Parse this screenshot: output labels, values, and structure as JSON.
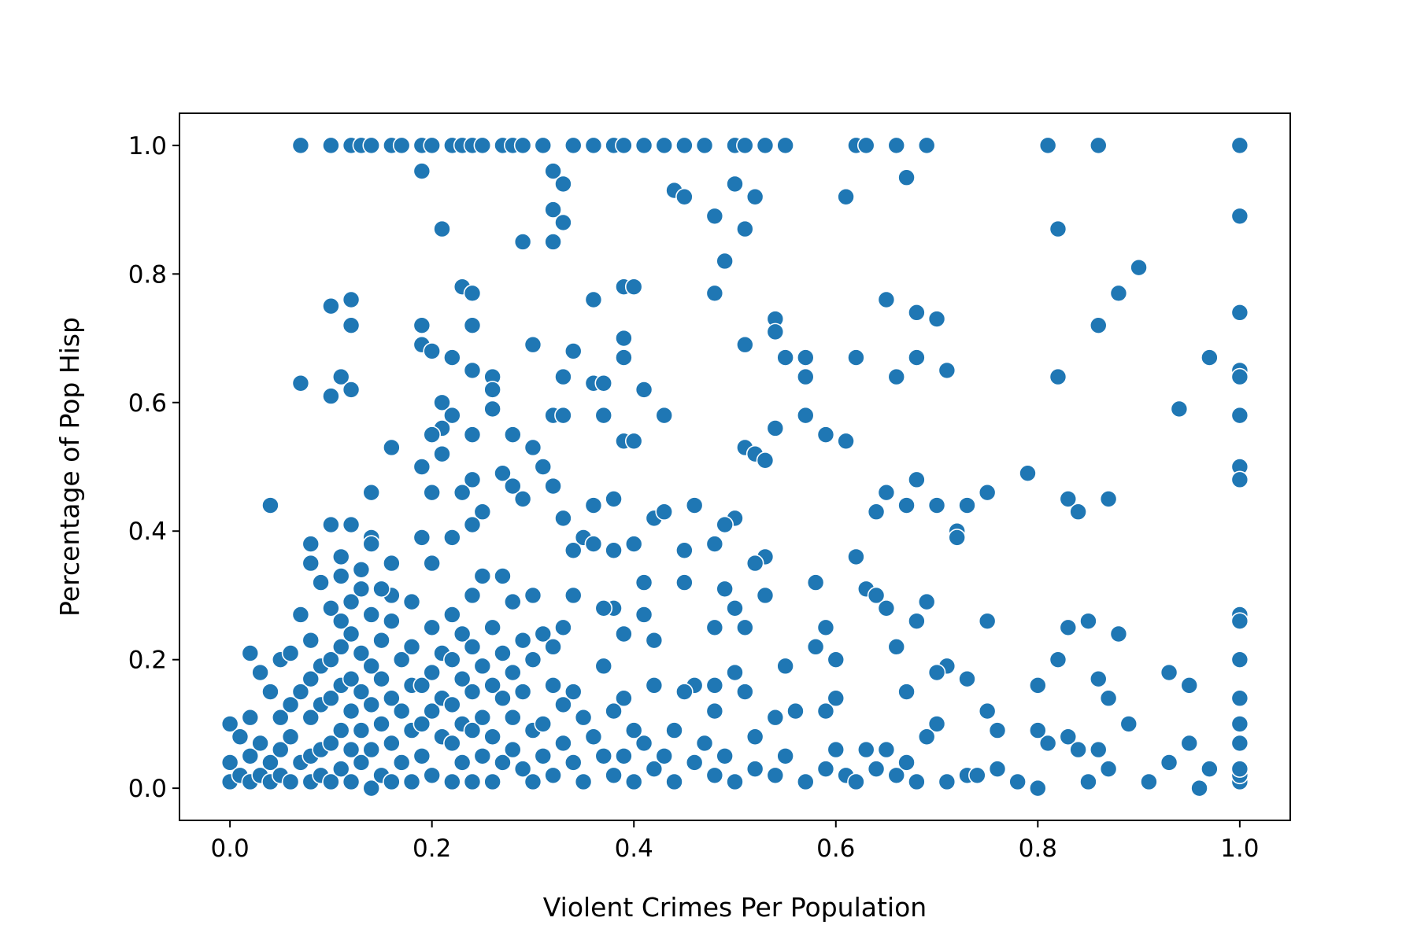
{
  "chart_data": {
    "type": "scatter",
    "xlabel": "Violent Crimes Per Population",
    "ylabel": "Percentage of Pop Hisp",
    "color": "#1f77b4",
    "xlim": [
      -0.05,
      1.05
    ],
    "ylim": [
      -0.05,
      1.05
    ],
    "xticks": [
      {
        "value": 0,
        "label": "0.0"
      },
      0.2,
      0.4,
      0.6,
      0.8,
      {
        "value": 1,
        "label": "1.0"
      }
    ],
    "yticks": [
      {
        "value": 0,
        "label": "0.0"
      },
      0.2,
      0.4,
      0.6,
      0.8,
      {
        "value": 1,
        "label": "1.0"
      }
    ],
    "x": [
      0.07,
      0.1,
      0.12,
      0.13,
      0.14,
      0.16,
      0.17,
      0.19,
      0.2,
      0.22,
      0.23,
      0.24,
      0.25,
      0.27,
      0.28,
      0.29,
      0.31,
      0.34,
      0.36,
      0.38,
      0.39,
      0.41,
      0.43,
      0.45,
      0.47,
      0.5,
      0.51,
      0.53,
      0.55,
      0.62,
      0.63,
      0.66,
      0.69,
      0.81,
      0.86,
      1,
      0.19,
      0.21,
      0.29,
      0.32,
      0.32,
      0.33,
      0.33,
      0.32,
      0.44,
      0.45,
      0.48,
      0.5,
      0.52,
      0.51,
      0.61,
      0.67,
      0.49,
      0.82,
      1,
      0.9,
      0.88,
      0.48,
      0.23,
      0.24,
      0.39,
      0.4,
      0.1,
      0.12,
      0.12,
      0.19,
      0.24,
      0.36,
      0.65,
      0.68,
      0.7,
      0.86,
      1,
      0.54,
      0.54,
      0.39,
      0.19,
      0.2,
      0.3,
      0.34,
      0.51,
      0.22,
      0.39,
      0.55,
      0.57,
      0.62,
      0.68,
      0.97,
      0.24,
      0.71,
      1,
      1,
      0.11,
      0.26,
      0.33,
      0.57,
      0.66,
      0.82,
      0.07,
      0.36,
      0.37,
      0.1,
      0.12,
      0.26,
      0.41,
      0.21,
      0.26,
      0.94,
      1,
      0.22,
      0.32,
      0.33,
      0.37,
      0.43,
      0.57,
      0.21,
      0.54,
      0.2,
      0.24,
      0.28,
      0.39,
      0.4,
      0.59,
      0.61,
      0.16,
      0.3,
      0.51,
      0.21,
      0.52,
      0.53,
      0.31,
      0.19,
      1,
      0.79,
      0.27,
      0.24,
      0.28,
      0.68,
      1,
      0.32,
      0.14,
      0.2,
      0.23,
      0.29,
      0.38,
      0.65,
      0.75,
      0.83,
      0.87,
      0.04,
      0.36,
      0.46,
      0.67,
      0.7,
      0.73,
      0.84,
      0.25,
      0.42,
      0.43,
      0.5,
      0.64,
      0.33,
      0.1,
      0.12,
      0.24,
      0.49,
      0.72,
      0.72,
      0.14,
      0.19,
      0.22,
      0.35,
      0.08,
      0.14,
      0.36,
      0.4,
      0.48,
      0.11,
      0.2,
      0.16,
      0.08,
      0.34,
      0.38,
      0.45,
      0.62,
      0.53,
      0.52,
      0.09,
      0.13,
      0.27,
      0.41,
      0.45,
      0.58,
      0.63,
      0.49,
      0.64,
      0.53,
      0.16,
      0.34,
      0.3,
      0.69,
      0.38,
      0.5,
      0.65,
      1,
      1,
      0.07,
      0.41,
      0.68,
      0.75,
      0.85,
      0.48,
      0.51,
      0.59,
      0.83,
      0.39,
      0.88,
      0.42,
      0.58,
      0.66,
      0.02,
      0.55,
      0.6,
      1,
      0.82,
      0.71,
      0.37,
      0.7,
      0.5,
      0.73,
      0.93,
      0.86,
      0.95,
      0.8,
      0.48,
      0.46,
      0.42,
      0.67,
      0.51,
      0.45,
      1,
      0.87,
      0.6,
      0.39,
      0.75,
      0.48,
      0.89,
      0.7,
      1,
      0.59,
      0.56,
      0.54,
      0.95,
      0.93,
      0.97,
      0.96,
      0.8,
      0.91,
      1,
      1,
      1,
      0.81,
      0.83,
      0.84,
      0.86,
      0.76,
      0.8,
      0.73,
      0.69,
      0.65,
      0.63,
      0.6,
      0.52,
      0.47,
      0.44,
      0.41,
      0,
      0,
      0,
      0.01,
      0.01,
      0.02,
      0.02,
      0.02,
      0.03,
      0.03,
      0.03,
      0.04,
      0.04,
      0.04,
      0.05,
      0.05,
      0.05,
      0.05,
      0.06,
      0.06,
      0.06,
      0.06,
      0.07,
      0.07,
      0.08,
      0.08,
      0.08,
      0.08,
      0.08,
      0.09,
      0.09,
      0.09,
      0.09,
      0.1,
      0.1,
      0.1,
      0.1,
      0.1,
      0.11,
      0.11,
      0.11,
      0.11,
      0.11,
      0.11,
      0.12,
      0.12,
      0.12,
      0.12,
      0.12,
      0.12,
      0.13,
      0.13,
      0.13,
      0.13,
      0.13,
      0.14,
      0.14,
      0.14,
      0.14,
      0.14,
      0.15,
      0.15,
      0.15,
      0.15,
      0.15,
      0.16,
      0.16,
      0.16,
      0.16,
      0.17,
      0.17,
      0.17,
      0.18,
      0.18,
      0.18,
      0.18,
      0.18,
      0.19,
      0.19,
      0.19,
      0.2,
      0.2,
      0.2,
      0.2,
      0.21,
      0.21,
      0.21,
      0.22,
      0.22,
      0.22,
      0.22,
      0.22,
      0.23,
      0.23,
      0.23,
      0.23,
      0.24,
      0.24,
      0.24,
      0.24,
      0.24,
      0.25,
      0.25,
      0.25,
      0.25,
      0.26,
      0.26,
      0.26,
      0.26,
      0.27,
      0.27,
      0.27,
      0.28,
      0.28,
      0.28,
      0.28,
      0.29,
      0.29,
      0.29,
      0.3,
      0.3,
      0.3,
      0.31,
      0.31,
      0.31,
      0.32,
      0.32,
      0.32,
      0.33,
      0.33,
      0.33,
      0.34,
      0.34,
      0.35,
      0.35,
      0.36,
      0.37,
      0.37,
      0.38,
      0.38,
      0.39,
      0.4,
      0.4,
      0.42,
      0.43,
      0.44,
      0.46,
      0.48,
      0.49,
      0.5,
      0.52,
      0.54,
      0.55,
      0.57,
      0.59,
      0.61,
      0.62,
      0.64,
      0.66,
      0.67,
      0.68,
      0.71,
      0.74,
      0.76,
      0.78,
      0.85,
      0.87,
      1
    ],
    "values": [
      1,
      1,
      1,
      1,
      1,
      1,
      1,
      1,
      1,
      1,
      1,
      1,
      1,
      1,
      1,
      1,
      1,
      1,
      1,
      1,
      1,
      1,
      1,
      1,
      1,
      1,
      1,
      1,
      1,
      1,
      1,
      1,
      1,
      1,
      1,
      1,
      0.96,
      0.87,
      0.85,
      0.96,
      0.9,
      0.88,
      0.94,
      0.85,
      0.93,
      0.92,
      0.89,
      0.94,
      0.92,
      0.87,
      0.92,
      0.95,
      0.82,
      0.87,
      0.89,
      0.81,
      0.77,
      0.77,
      0.78,
      0.77,
      0.78,
      0.78,
      0.75,
      0.76,
      0.72,
      0.72,
      0.72,
      0.76,
      0.76,
      0.74,
      0.73,
      0.72,
      0.74,
      0.73,
      0.71,
      0.7,
      0.69,
      0.68,
      0.69,
      0.68,
      0.69,
      0.67,
      0.67,
      0.67,
      0.67,
      0.67,
      0.67,
      0.67,
      0.65,
      0.65,
      0.65,
      0.64,
      0.64,
      0.64,
      0.64,
      0.64,
      0.64,
      0.64,
      0.63,
      0.63,
      0.63,
      0.61,
      0.62,
      0.62,
      0.62,
      0.6,
      0.59,
      0.59,
      0.58,
      0.58,
      0.58,
      0.58,
      0.58,
      0.58,
      0.58,
      0.56,
      0.56,
      0.55,
      0.55,
      0.55,
      0.54,
      0.54,
      0.55,
      0.54,
      0.53,
      0.53,
      0.53,
      0.52,
      0.52,
      0.51,
      0.5,
      0.5,
      0.5,
      0.49,
      0.49,
      0.48,
      0.47,
      0.48,
      0.48,
      0.47,
      0.46,
      0.46,
      0.46,
      0.45,
      0.45,
      0.46,
      0.46,
      0.45,
      0.45,
      0.44,
      0.44,
      0.44,
      0.44,
      0.44,
      0.44,
      0.43,
      0.43,
      0.42,
      0.43,
      0.42,
      0.43,
      0.42,
      0.41,
      0.41,
      0.41,
      0.41,
      0.4,
      0.39,
      0.39,
      0.39,
      0.39,
      0.39,
      0.38,
      0.38,
      0.38,
      0.38,
      0.38,
      0.36,
      0.35,
      0.35,
      0.35,
      0.37,
      0.37,
      0.37,
      0.36,
      0.36,
      0.35,
      0.32,
      0.34,
      0.33,
      0.32,
      0.32,
      0.32,
      0.31,
      0.31,
      0.3,
      0.3,
      0.3,
      0.3,
      0.3,
      0.29,
      0.28,
      0.28,
      0.28,
      0.27,
      0.26,
      0.27,
      0.27,
      0.26,
      0.26,
      0.26,
      0.25,
      0.25,
      0.25,
      0.25,
      0.24,
      0.24,
      0.23,
      0.22,
      0.22,
      0.21,
      0.19,
      0.2,
      0.2,
      0.2,
      0.19,
      0.19,
      0.18,
      0.18,
      0.17,
      0.18,
      0.17,
      0.16,
      0.16,
      0.16,
      0.16,
      0.16,
      0.15,
      0.15,
      0.15,
      0.14,
      0.14,
      0.14,
      0.14,
      0.12,
      0.12,
      0.1,
      0.1,
      0.1,
      0.12,
      0.12,
      0.11,
      0.07,
      0.04,
      0.03,
      0,
      0,
      0.01,
      0.01,
      0.02,
      0.07,
      0.07,
      0.08,
      0.06,
      0.06,
      0.09,
      0.09,
      0.02,
      0.08,
      0.06,
      0.06,
      0.06,
      0.08,
      0.07,
      0.09,
      0.07,
      0.1,
      0.04,
      0.01,
      0.08,
      0.02,
      0.11,
      0.05,
      0.01,
      0.18,
      0.07,
      0.02,
      0.15,
      0.04,
      0.01,
      0.2,
      0.11,
      0.06,
      0.02,
      0.21,
      0.13,
      0.08,
      0.01,
      0.15,
      0.04,
      0.23,
      0.17,
      0.11,
      0.05,
      0.01,
      0.19,
      0.13,
      0.06,
      0.02,
      0.28,
      0.2,
      0.14,
      0.07,
      0.01,
      0.33,
      0.26,
      0.22,
      0.16,
      0.09,
      0.03,
      0.29,
      0.24,
      0.17,
      0.12,
      0.06,
      0.01,
      0.31,
      0.21,
      0.15,
      0.09,
      0.04,
      0.27,
      0.19,
      0.13,
      0.06,
      0,
      0.31,
      0.23,
      0.17,
      0.1,
      0.02,
      0.26,
      0.14,
      0.07,
      0.01,
      0.2,
      0.12,
      0.04,
      0.29,
      0.22,
      0.16,
      0.09,
      0.01,
      0.16,
      0.1,
      0.05,
      0.25,
      0.18,
      0.12,
      0.02,
      0.21,
      0.14,
      0.08,
      0.27,
      0.2,
      0.13,
      0.07,
      0.01,
      0.24,
      0.17,
      0.1,
      0.04,
      0.3,
      0.22,
      0.15,
      0.09,
      0.01,
      0.33,
      0.19,
      0.11,
      0.05,
      0.25,
      0.16,
      0.08,
      0.01,
      0.21,
      0.14,
      0.04,
      0.29,
      0.18,
      0.11,
      0.06,
      0.23,
      0.15,
      0.03,
      0.2,
      0.09,
      0.01,
      0.24,
      0.1,
      0.05,
      0.22,
      0.16,
      0.02,
      0.25,
      0.13,
      0.07,
      0.15,
      0.04,
      0.11,
      0.01,
      0.08,
      0.28,
      0.05,
      0.12,
      0.02,
      0.05,
      0.09,
      0.01,
      0.03,
      0.05,
      0.01,
      0.04,
      0.02,
      0.05,
      0.01,
      0.03,
      0.02,
      0.05,
      0.01,
      0.03,
      0.02,
      0.01,
      0.03,
      0.02,
      0.04,
      0.01,
      0.01,
      0.02,
      0.03,
      0.01,
      0.01,
      0.03,
      0.03
    ]
  }
}
